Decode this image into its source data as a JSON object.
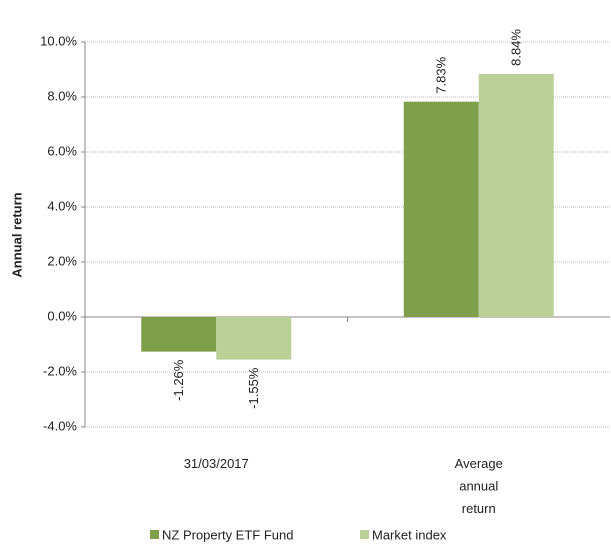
{
  "chart_data": {
    "type": "bar",
    "y_label": "Annual return",
    "categories": [
      "31/03/2017",
      "Average annual return"
    ],
    "series": [
      {
        "name": "NZ Property ETF Fund",
        "color": "#7f9f4b",
        "values": [
          -1.26,
          7.83
        ],
        "value_labels": [
          "-1.26%",
          "7.83%"
        ]
      },
      {
        "name": "Market index",
        "color": "#bad096",
        "values": [
          -1.55,
          8.84
        ],
        "value_labels": [
          "-1.55%",
          "8.84%"
        ]
      }
    ],
    "ylim": [
      -4,
      10
    ],
    "yticks": [
      {
        "value": -4,
        "label": "-4.0%"
      },
      {
        "value": -2,
        "label": "-2.0%"
      },
      {
        "value": 0,
        "label": "0.0%"
      },
      {
        "value": 2,
        "label": "2.0%"
      },
      {
        "value": 4,
        "label": "4.0%"
      },
      {
        "value": 6,
        "label": "6.0%"
      },
      {
        "value": 8,
        "label": "8.0%"
      },
      {
        "value": 10,
        "label": "10.0%"
      }
    ],
    "grid": true,
    "legend": "bottom"
  }
}
